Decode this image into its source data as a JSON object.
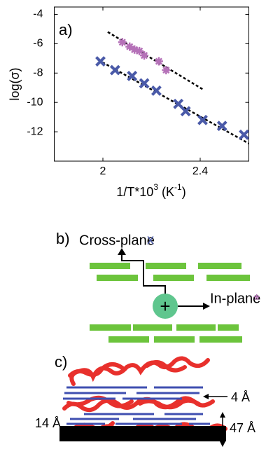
{
  "chart_data": {
    "type": "scatter",
    "panel_label": "a)",
    "y_label": "log(σ)",
    "x_label": [
      "1/T*10",
      "3",
      " (K",
      "-1",
      ")"
    ],
    "xlim": [
      1.8,
      2.6
    ],
    "ylim": [
      -14,
      -3.5
    ],
    "xticks": [
      2,
      2.4
    ],
    "yticks": [
      -12,
      -10,
      -8,
      -6,
      -4
    ],
    "grid": false,
    "series": [
      {
        "color": "#4a5aa8",
        "marker": "x",
        "x": [
          1.99,
          2.05,
          2.12,
          2.17,
          2.22,
          2.31,
          2.34,
          2.41,
          2.49,
          2.58
        ],
        "y": [
          -7.2,
          -7.8,
          -8.2,
          -8.7,
          -9.2,
          -10.1,
          -10.6,
          -11.2,
          -11.6,
          -12.2
        ]
      },
      {
        "color": "#b571b8",
        "marker": "*",
        "x": [
          2.08,
          2.11,
          2.13,
          2.15,
          2.17,
          2.23,
          2.26
        ],
        "y": [
          -5.9,
          -6.2,
          -6.4,
          -6.5,
          -6.8,
          -7.2,
          -7.8
        ]
      }
    ],
    "fits": [
      {
        "color": "#000000",
        "x": [
          2.02,
          2.41
        ],
        "y": [
          -5.2,
          -9.1
        ]
      },
      {
        "color": "#000000",
        "x": [
          1.98,
          2.6
        ],
        "y": [
          -7.1,
          -12.8
        ]
      }
    ]
  },
  "diagram_b": {
    "label": "b)",
    "cross_plane": "Cross-plane",
    "cross_symbol": "x",
    "in_plane": "In-plane",
    "in_symbol": "*",
    "charge": "+"
  },
  "diagram_c": {
    "label": "c)",
    "spacing": "4 Å",
    "gap": "14 Å",
    "thickness": "47 Å"
  }
}
